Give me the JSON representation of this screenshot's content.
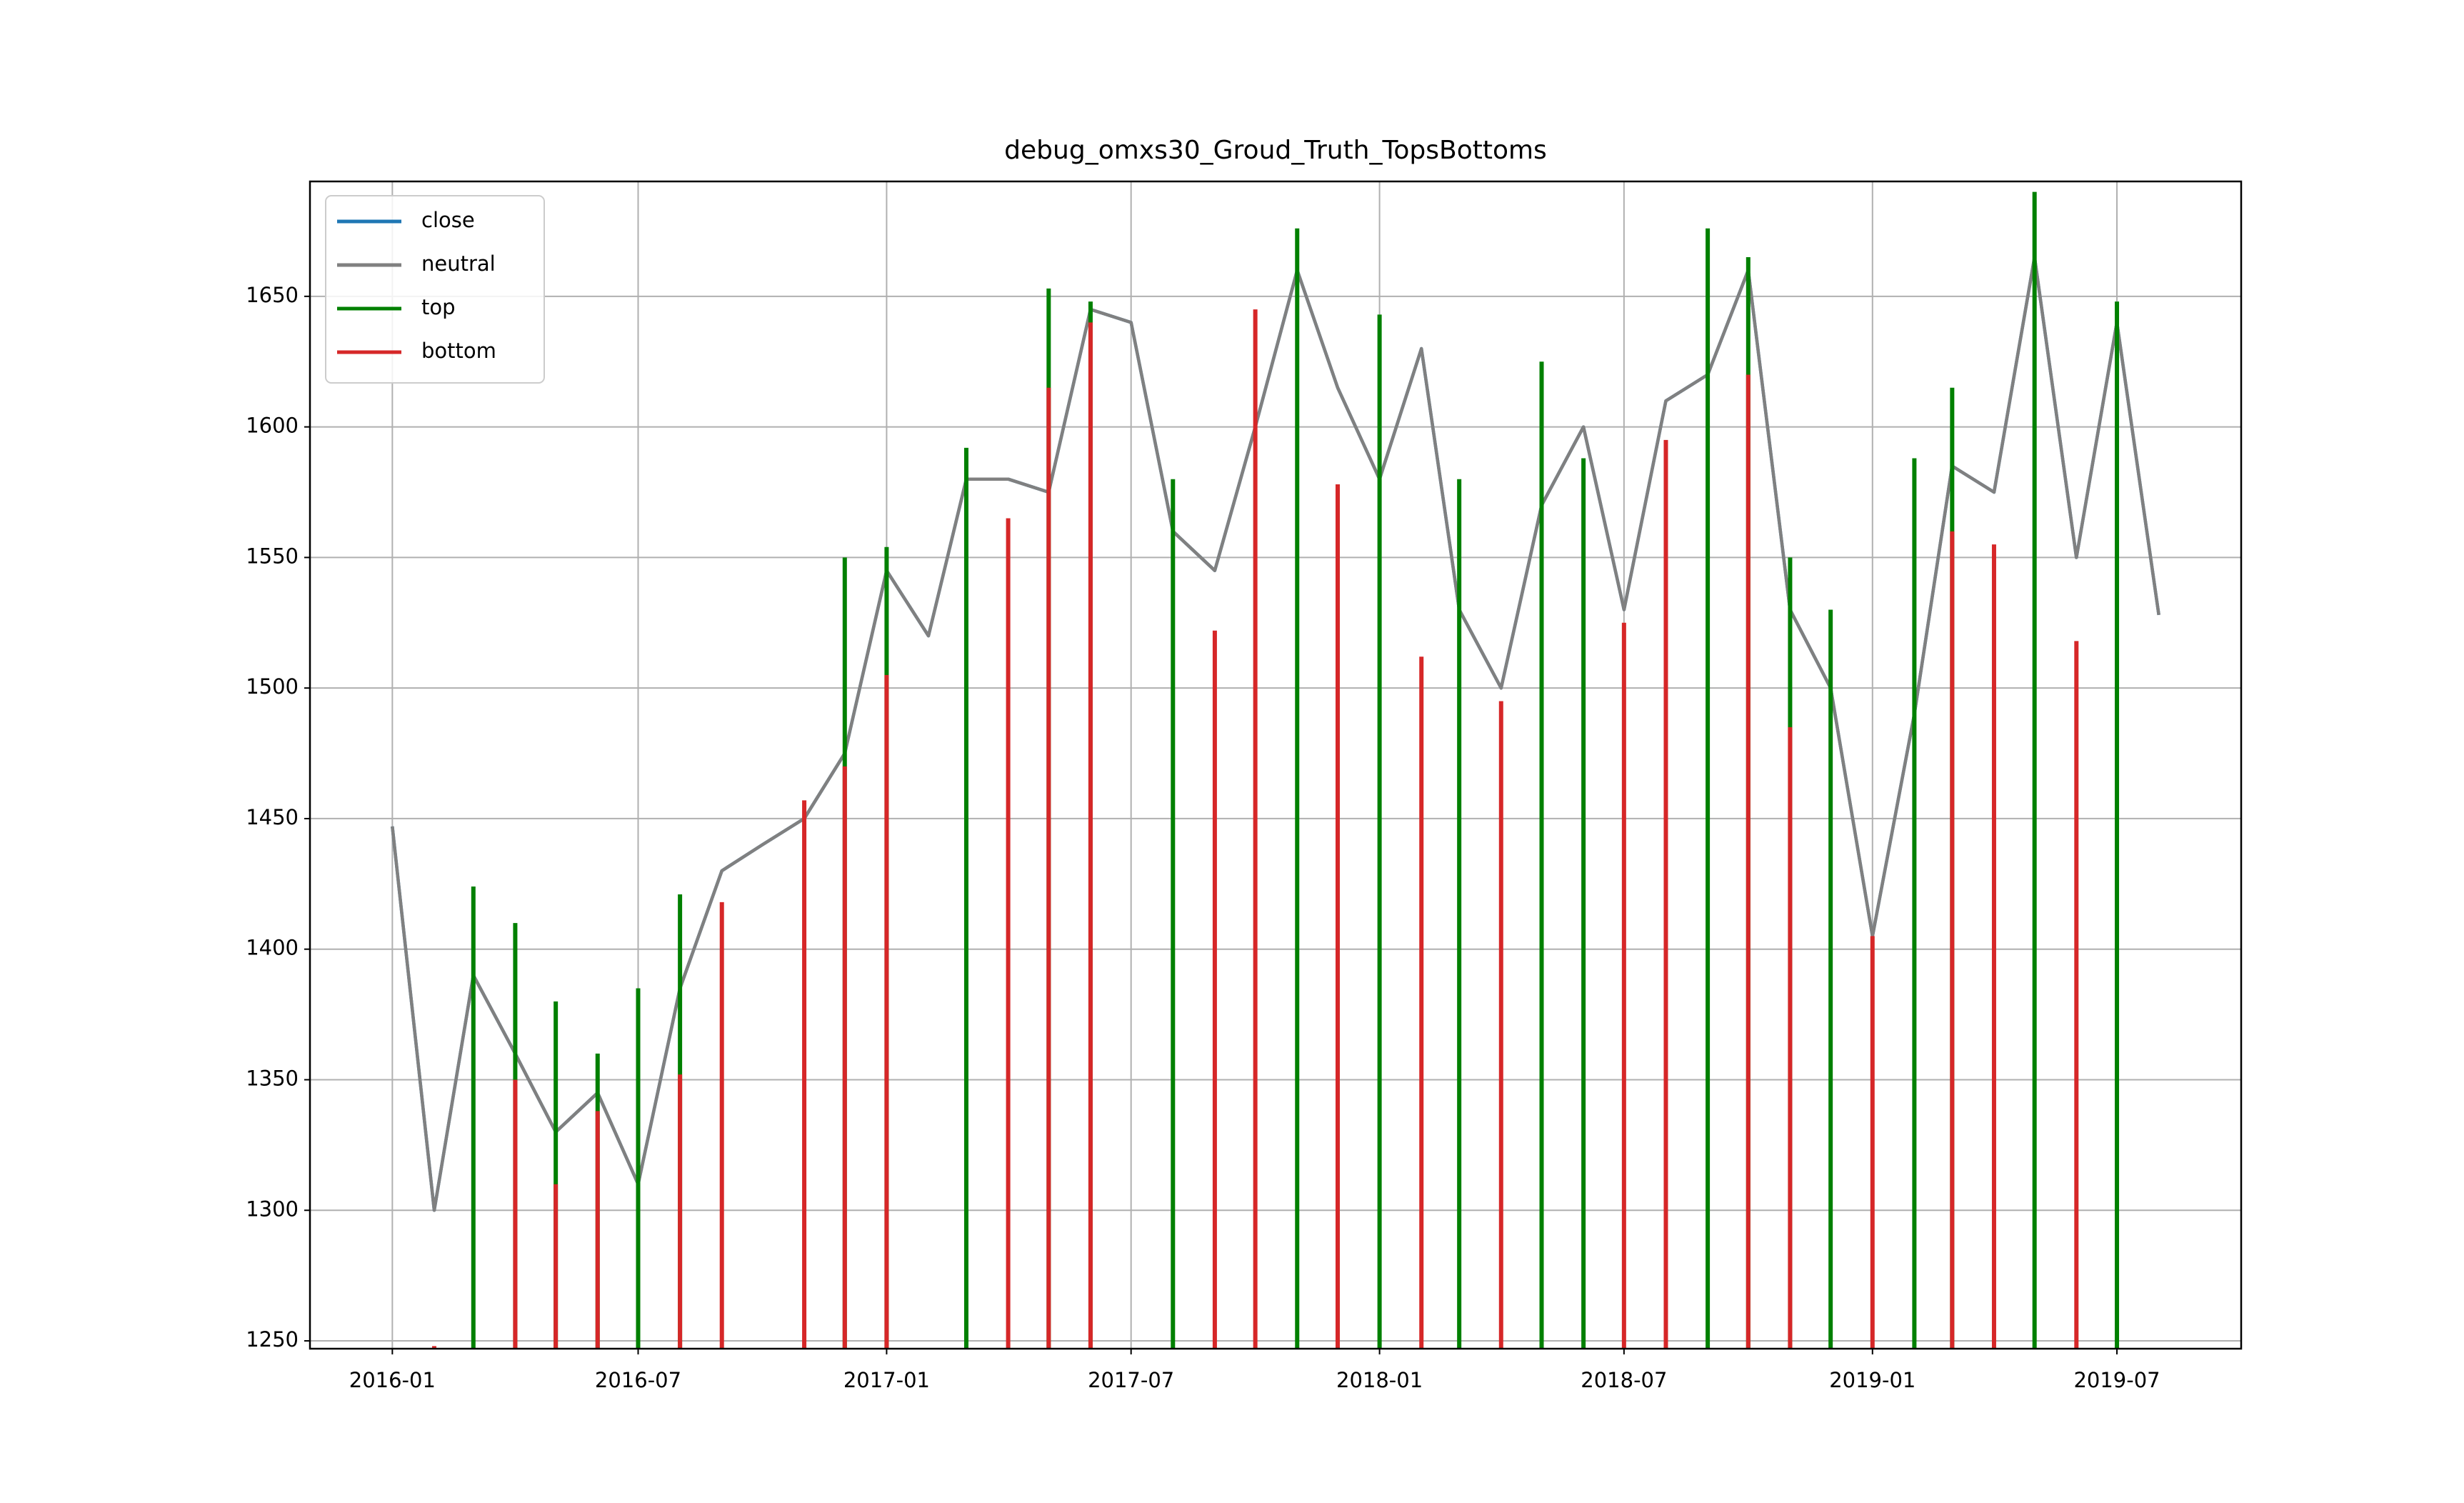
{
  "chart_data": {
    "type": "line",
    "title": "debug_omxs30_Groud_Truth_TopsBottoms",
    "x": [
      "2016-01",
      "2016-02",
      "2016-03",
      "2016-04",
      "2016-05",
      "2016-06",
      "2016-07",
      "2016-08",
      "2016-09",
      "2016-10",
      "2016-11",
      "2016-12",
      "2017-01",
      "2017-02",
      "2017-03",
      "2017-04",
      "2017-05",
      "2017-06",
      "2017-07",
      "2017-08",
      "2017-09",
      "2017-10",
      "2017-11",
      "2017-12",
      "2018-01",
      "2018-02",
      "2018-03",
      "2018-04",
      "2018-05",
      "2018-06",
      "2018-07",
      "2018-08",
      "2018-09",
      "2018-10",
      "2018-11",
      "2018-12",
      "2019-01",
      "2019-02",
      "2019-03",
      "2019-04",
      "2019-05",
      "2019-06",
      "2019-07",
      "2019-08"
    ],
    "series": [
      {
        "name": "close",
        "color": "#1f77b4",
        "values": [
          1447,
          1300,
          1390,
          1360,
          1330,
          1345,
          1310,
          1385,
          1430,
          1440,
          1450,
          1475,
          1545,
          1520,
          1580,
          1580,
          1575,
          1645,
          1640,
          1560,
          1545,
          1600,
          1660,
          1615,
          1580,
          1630,
          1530,
          1500,
          1570,
          1600,
          1530,
          1610,
          1620,
          1660,
          1530,
          1500,
          1405,
          1490,
          1585,
          1575,
          1665,
          1550,
          1640,
          1528
        ]
      },
      {
        "name": "neutral",
        "color": "#808080",
        "values": [
          1447,
          1300,
          1390,
          1360,
          1330,
          1345,
          1310,
          1385,
          1430,
          1440,
          1450,
          1475,
          1545,
          1520,
          1580,
          1580,
          1575,
          1645,
          1640,
          1560,
          1545,
          1600,
          1660,
          1615,
          1580,
          1630,
          1530,
          1500,
          1570,
          1600,
          1530,
          1610,
          1620,
          1660,
          1530,
          1500,
          1405,
          1490,
          1585,
          1575,
          1665,
          1550,
          1640,
          1528
        ]
      },
      {
        "name": "top",
        "color": "#008000",
        "x": [
          "2016-03",
          "2016-04",
          "2016-05",
          "2016-06",
          "2016-07",
          "2016-08",
          "2016-12",
          "2017-01",
          "2017-03",
          "2017-05",
          "2017-06",
          "2017-08",
          "2017-11",
          "2018-01",
          "2018-03",
          "2018-05",
          "2018-06",
          "2018-09",
          "2018-10",
          "2018-11",
          "2018-12",
          "2019-02",
          "2019-03",
          "2019-05",
          "2019-07"
        ],
        "values": [
          1424,
          1410,
          1380,
          1360,
          1385,
          1421,
          1550,
          1554,
          1592,
          1653,
          1648,
          1580,
          1676,
          1643,
          1580,
          1625,
          1588,
          1676,
          1665,
          1550,
          1530,
          1588,
          1615,
          1690,
          1648
        ]
      },
      {
        "name": "bottom",
        "color": "#d62728",
        "x": [
          "2016-02",
          "2016-04",
          "2016-05",
          "2016-06",
          "2016-08",
          "2016-09",
          "2016-11",
          "2016-12",
          "2017-01",
          "2017-04",
          "2017-05",
          "2017-06",
          "2017-09",
          "2017-10",
          "2017-12",
          "2018-02",
          "2018-04",
          "2018-07",
          "2018-08",
          "2018-10",
          "2018-11",
          "2019-01",
          "2019-03",
          "2019-04",
          "2019-06"
        ],
        "values": [
          1248,
          1350,
          1310,
          1338,
          1352,
          1418,
          1457,
          1470,
          1505,
          1565,
          1615,
          1640,
          1522,
          1645,
          1578,
          1512,
          1495,
          1525,
          1595,
          1620,
          1485,
          1405,
          1560,
          1555,
          1518
        ]
      }
    ],
    "xlim": [
      "2015-11",
      "2019-10"
    ],
    "xticks": [
      "2016-01",
      "2016-07",
      "2017-01",
      "2017-07",
      "2018-01",
      "2018-07",
      "2019-01",
      "2019-07"
    ],
    "ylim": [
      1247,
      1694
    ],
    "yticks": [
      1250,
      1300,
      1350,
      1400,
      1450,
      1500,
      1550,
      1600,
      1650
    ],
    "grid": true,
    "legend": "upper left"
  }
}
